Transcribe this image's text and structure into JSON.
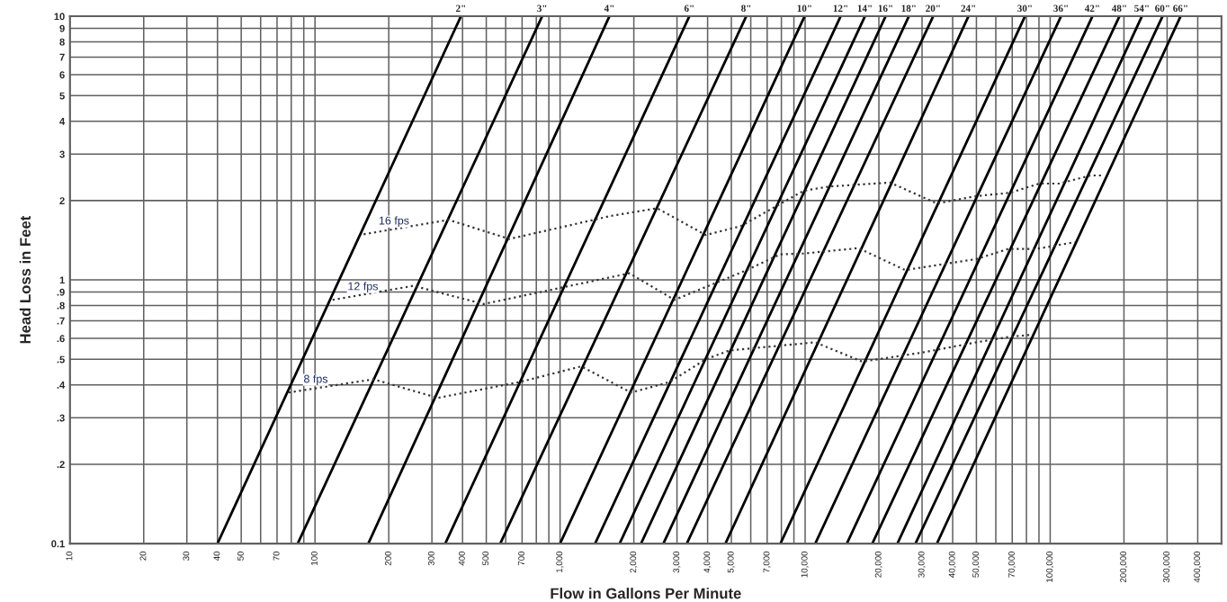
{
  "chart_data": {
    "type": "line",
    "xlabel": "Flow in Gallons Per Minute",
    "ylabel": "Head Loss in Feet",
    "log": "xy",
    "grid": true,
    "legend": false,
    "marker": "none",
    "xlim": [
      10,
      500000
    ],
    "ylim": [
      0.1,
      10
    ],
    "xticks": [
      10,
      20,
      30,
      40,
      50,
      {
        "value": 60,
        "label": null
      },
      70,
      {
        "value": 80,
        "label": null
      },
      {
        "value": 90,
        "label": null
      },
      100,
      200,
      300,
      400,
      500,
      {
        "value": 600,
        "label": null
      },
      700,
      {
        "value": 800,
        "label": null
      },
      {
        "value": 900,
        "label": null
      },
      {
        "value": 1000,
        "label": "1,000"
      },
      {
        "value": 2000,
        "label": "2,000"
      },
      {
        "value": 3000,
        "label": "3,000"
      },
      {
        "value": 4000,
        "label": "4,000"
      },
      {
        "value": 5000,
        "label": "5,000"
      },
      {
        "value": 6000,
        "label": null
      },
      {
        "value": 7000,
        "label": "7,000"
      },
      {
        "value": 8000,
        "label": null
      },
      {
        "value": 9000,
        "label": null
      },
      {
        "value": 10000,
        "label": "10,000"
      },
      {
        "value": 20000,
        "label": "20,000"
      },
      {
        "value": 30000,
        "label": "30,000"
      },
      {
        "value": 40000,
        "label": "40,000"
      },
      {
        "value": 50000,
        "label": "50,000"
      },
      {
        "value": 60000,
        "label": null
      },
      {
        "value": 70000,
        "label": "70,000"
      },
      {
        "value": 80000,
        "label": null
      },
      {
        "value": 90000,
        "label": null
      },
      {
        "value": 100000,
        "label": "100,000"
      },
      {
        "value": 200000,
        "label": "200,000"
      },
      {
        "value": 300000,
        "label": "300,000"
      },
      {
        "value": 400000,
        "label": "400,000"
      }
    ],
    "yticks": [
      0.1,
      {
        "value": 0.2,
        "label": ".2"
      },
      {
        "value": 0.3,
        "label": ".3"
      },
      {
        "value": 0.4,
        "label": ".4"
      },
      {
        "value": 0.5,
        "label": ".5"
      },
      {
        "value": 0.6,
        "label": ".6"
      },
      {
        "value": 0.7,
        "label": ".7"
      },
      {
        "value": 0.8,
        "label": ".8"
      },
      {
        "value": 0.9,
        "label": ".9"
      },
      1,
      2,
      3,
      4,
      5,
      6,
      7,
      8,
      9,
      10
    ],
    "series": [
      {
        "name": "2\"",
        "color": "#000000",
        "line_style": "solid",
        "x": [
          40,
          394
        ],
        "values": [
          0.1,
          10
        ]
      },
      {
        "name": "3\"",
        "color": "#000000",
        "line_style": "solid",
        "x": [
          85,
          845
        ],
        "values": [
          0.1,
          10
        ]
      },
      {
        "name": "4\"",
        "color": "#000000",
        "line_style": "solid",
        "x": [
          165,
          1590
        ],
        "values": [
          0.1,
          10
        ]
      },
      {
        "name": "6\"",
        "color": "#000000",
        "line_style": "solid",
        "x": [
          340,
          3370
        ],
        "values": [
          0.1,
          10
        ]
      },
      {
        "name": "8\"",
        "color": "#000000",
        "line_style": "solid",
        "x": [
          570,
          5750
        ],
        "values": [
          0.1,
          10
        ]
      },
      {
        "name": "10\"",
        "color": "#000000",
        "line_style": "solid",
        "x": [
          1000,
          9950
        ],
        "values": [
          0.1,
          10
        ]
      },
      {
        "name": "12\"",
        "color": "#000000",
        "line_style": "solid",
        "x": [
          1390,
          13960
        ],
        "values": [
          0.1,
          10
        ]
      },
      {
        "name": "14\"",
        "color": "#000000",
        "line_style": "solid",
        "x": [
          1750,
          17540
        ],
        "values": [
          0.1,
          10
        ]
      },
      {
        "name": "16\"",
        "color": "#000000",
        "line_style": "solid",
        "x": [
          2140,
          21300
        ],
        "values": [
          0.1,
          10
        ]
      },
      {
        "name": "18\"",
        "color": "#000000",
        "line_style": "solid",
        "x": [
          2640,
          26500
        ],
        "values": [
          0.1,
          10
        ]
      },
      {
        "name": "20\"",
        "color": "#000000",
        "line_style": "solid",
        "x": [
          3290,
          33300
        ],
        "values": [
          0.1,
          10
        ]
      },
      {
        "name": "24\"",
        "color": "#000000",
        "line_style": "solid",
        "x": [
          4730,
          46400
        ],
        "values": [
          0.1,
          10
        ]
      },
      {
        "name": "30\"",
        "color": "#000000",
        "line_style": "solid",
        "x": [
          7930,
          78900
        ],
        "values": [
          0.1,
          10
        ]
      },
      {
        "name": "36\"",
        "color": "#000000",
        "line_style": "solid",
        "x": [
          11000,
          110700
        ],
        "values": [
          0.1,
          10
        ]
      },
      {
        "name": "42\"",
        "color": "#000000",
        "line_style": "solid",
        "x": [
          14800,
          148700
        ],
        "values": [
          0.1,
          10
        ]
      },
      {
        "name": "48\"",
        "color": "#000000",
        "line_style": "solid",
        "x": [
          18800,
          191700
        ],
        "values": [
          0.1,
          10
        ]
      },
      {
        "name": "54\"",
        "color": "#000000",
        "line_style": "solid",
        "x": [
          23800,
          236700
        ],
        "values": [
          0.1,
          10
        ]
      },
      {
        "name": "60\"",
        "color": "#000000",
        "line_style": "solid",
        "x": [
          28200,
          287400
        ],
        "values": [
          0.1,
          10
        ]
      },
      {
        "name": "66\"",
        "color": "#000000",
        "line_style": "solid",
        "x": [
          34500,
          340500
        ],
        "values": [
          0.1,
          10
        ]
      },
      {
        "name": "16 fps",
        "color": "#333333",
        "line_style": "dotted",
        "x": [
          158,
          351,
          622,
          1617,
          2490,
          3930,
          5470,
          9870,
          12500,
          22200,
          34500,
          50000,
          68400,
          90400,
          109000,
          146000,
          166000
        ],
        "values": [
          1.49,
          1.69,
          1.43,
          1.75,
          1.87,
          1.48,
          1.6,
          2.18,
          2.26,
          2.34,
          1.95,
          2.08,
          2.14,
          2.32,
          2.32,
          2.49,
          2.49
        ]
      },
      {
        "name": "12 fps",
        "color": "#333333",
        "line_style": "dotted",
        "x": [
          118,
          252,
          488,
          1920,
          2930,
          5650,
          7920,
          9870,
          16500,
          25600,
          50000,
          67300,
          87400,
          126000
        ],
        "values": [
          0.84,
          0.95,
          0.81,
          1.06,
          0.84,
          1.08,
          1.25,
          1.26,
          1.32,
          1.09,
          1.2,
          1.31,
          1.31,
          1.39
        ]
      },
      {
        "name": "8 fps",
        "color": "#333333",
        "line_style": "dotted",
        "x": [
          78,
          173,
          317,
          684,
          1220,
          1950,
          2800,
          3930,
          4900,
          11000,
          17100,
          29900,
          50000,
          69500,
          85100
        ],
        "values": [
          0.374,
          0.42,
          0.357,
          0.41,
          0.47,
          0.374,
          0.41,
          0.5,
          0.54,
          0.58,
          0.49,
          0.53,
          0.58,
          0.61,
          0.62
        ]
      }
    ]
  }
}
